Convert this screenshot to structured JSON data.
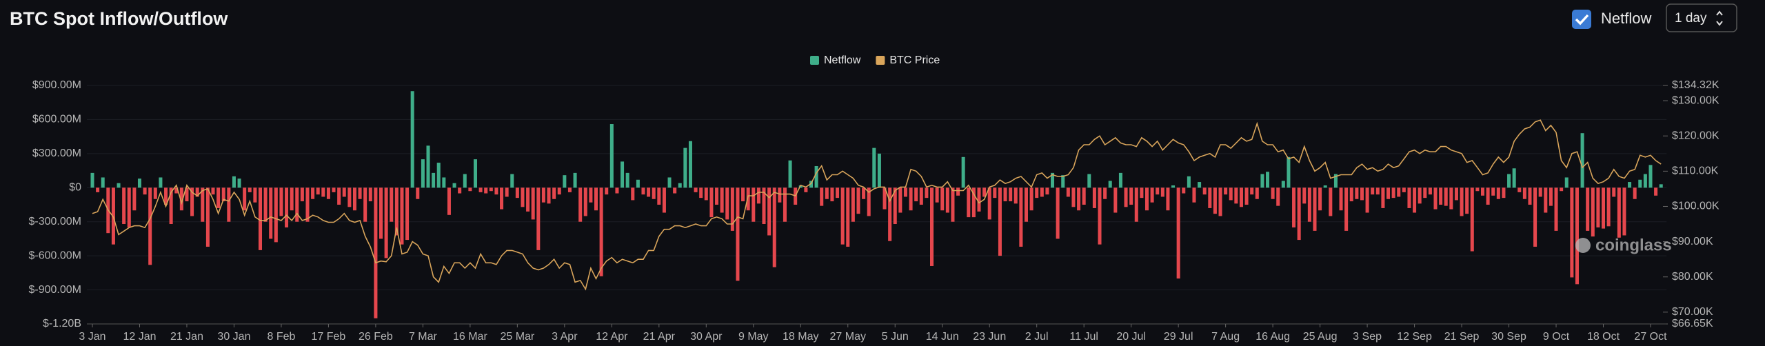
{
  "header": {
    "title": "BTC Spot Inflow/Outflow"
  },
  "controls": {
    "toggle_label": "Netflow",
    "interval": "1 day"
  },
  "watermark": "coinglass",
  "chart_data": {
    "type": "bar",
    "categories": [
      "3 Jan",
      null,
      null,
      null,
      null,
      null,
      null,
      null,
      null,
      "12 Jan",
      null,
      null,
      null,
      null,
      null,
      null,
      null,
      null,
      "21 Jan",
      null,
      null,
      null,
      null,
      null,
      null,
      null,
      null,
      "30 Jan",
      null,
      null,
      null,
      null,
      null,
      null,
      null,
      null,
      "8 Feb",
      null,
      null,
      null,
      null,
      null,
      null,
      null,
      null,
      "17 Feb",
      null,
      null,
      null,
      null,
      null,
      null,
      null,
      null,
      "26 Feb",
      null,
      null,
      null,
      null,
      null,
      null,
      null,
      null,
      "7 Mar",
      null,
      null,
      null,
      null,
      null,
      null,
      null,
      null,
      "16 Mar",
      null,
      null,
      null,
      null,
      null,
      null,
      null,
      null,
      "25 Mar",
      null,
      null,
      null,
      null,
      null,
      null,
      null,
      null,
      "3 Apr",
      null,
      null,
      null,
      null,
      null,
      null,
      null,
      null,
      "12 Apr",
      null,
      null,
      null,
      null,
      null,
      null,
      null,
      null,
      "21 Apr",
      null,
      null,
      null,
      null,
      null,
      null,
      null,
      null,
      "30 Apr",
      null,
      null,
      null,
      null,
      null,
      null,
      null,
      null,
      "9 May",
      null,
      null,
      null,
      null,
      null,
      null,
      null,
      null,
      "18 May",
      null,
      null,
      null,
      null,
      null,
      null,
      null,
      null,
      "27 May",
      null,
      null,
      null,
      null,
      null,
      null,
      null,
      null,
      "5 Jun",
      null,
      null,
      null,
      null,
      null,
      null,
      null,
      null,
      "14 Jun",
      null,
      null,
      null,
      null,
      null,
      null,
      null,
      null,
      "23 Jun",
      null,
      null,
      null,
      null,
      null,
      null,
      null,
      null,
      "2 Jul",
      null,
      null,
      null,
      null,
      null,
      null,
      null,
      null,
      "11 Jul",
      null,
      null,
      null,
      null,
      null,
      null,
      null,
      null,
      "20 Jul",
      null,
      null,
      null,
      null,
      null,
      null,
      null,
      null,
      "29 Jul",
      null,
      null,
      null,
      null,
      null,
      null,
      null,
      null,
      "7 Aug",
      null,
      null,
      null,
      null,
      null,
      null,
      null,
      null,
      "16 Aug",
      null,
      null,
      null,
      null,
      null,
      null,
      null,
      null,
      "25 Aug",
      null,
      null,
      null,
      null,
      null,
      null,
      null,
      null,
      "3 Sep",
      null,
      null,
      null,
      null,
      null,
      null,
      null,
      null,
      "12 Sep",
      null,
      null,
      null,
      null,
      null,
      null,
      null,
      null,
      "21 Sep",
      null,
      null,
      null,
      null,
      null,
      null,
      null,
      null,
      "30 Sep",
      null,
      null,
      null,
      null,
      null,
      null,
      null,
      null,
      "9 Oct",
      null,
      null,
      null,
      null,
      null,
      null,
      null,
      null,
      "18 Oct",
      null,
      null,
      null,
      null,
      null,
      null,
      null,
      null,
      "27 Oct",
      null,
      null
    ],
    "series": [
      {
        "name": "Netflow",
        "type": "bar",
        "color": "#3fae8a",
        "negative_color": "#e5474d",
        "values": [
          130,
          -40,
          90,
          -400,
          -500,
          40,
          -320,
          -350,
          -200,
          80,
          -60,
          -680,
          -100,
          90,
          -150,
          -320,
          -50,
          -200,
          -120,
          -250,
          -80,
          -300,
          -520,
          -60,
          -180,
          -120,
          -300,
          100,
          80,
          -200,
          -40,
          -130,
          -550,
          -300,
          -450,
          -480,
          -250,
          -350,
          -200,
          -300,
          -120,
          -300,
          -100,
          -60,
          -80,
          -100,
          -40,
          -150,
          -80,
          -170,
          -200,
          -100,
          -300,
          -120,
          -1150,
          -450,
          -620,
          -300,
          -420,
          -500,
          -460,
          850,
          -100,
          250,
          370,
          130,
          220,
          90,
          -240,
          40,
          -50,
          120,
          -30,
          250,
          -40,
          -50,
          -30,
          -60,
          -190,
          -80,
          120,
          -90,
          -170,
          -210,
          -280,
          -550,
          -130,
          -140,
          -100,
          -60,
          110,
          -40,
          130,
          -300,
          -250,
          -130,
          -200,
          -780,
          -60,
          560,
          -50,
          230,
          130,
          -110,
          70,
          -60,
          -80,
          -100,
          -150,
          -220,
          90,
          -50,
          40,
          350,
          410,
          -40,
          -90,
          -110,
          -260,
          -150,
          -220,
          -280,
          -380,
          -820,
          -120,
          -200,
          -300,
          -140,
          -320,
          -420,
          -700,
          -130,
          -300,
          240,
          -150,
          20,
          -40,
          60,
          190,
          -160,
          -100,
          -120,
          -90,
          -500,
          -520,
          -300,
          -230,
          -100,
          -250,
          350,
          300,
          -190,
          -470,
          -320,
          -220,
          -80,
          -200,
          -120,
          -150,
          -90,
          -690,
          -130,
          -200,
          -220,
          -300,
          -70,
          270,
          -260,
          -260,
          -210,
          -80,
          -280,
          -90,
          -600,
          -120,
          -120,
          -140,
          -520,
          -300,
          -200,
          -90,
          -80,
          -60,
          130,
          -450,
          110,
          -80,
          -170,
          -200,
          -150,
          120,
          -180,
          -500,
          -100,
          60,
          -220,
          130,
          -170,
          -150,
          -300,
          -90,
          -200,
          -130,
          -60,
          -80,
          -200,
          20,
          -800,
          -50,
          100,
          -130,
          50,
          -60,
          -180,
          -230,
          -250,
          -60,
          -110,
          -140,
          -170,
          -150,
          -60,
          -100,
          120,
          140,
          -100,
          -160,
          60,
          270,
          -350,
          -460,
          -140,
          -300,
          -380,
          -200,
          20,
          -250,
          120,
          -200,
          -380,
          -120,
          -100,
          -110,
          -220,
          -60,
          -60,
          -180,
          -100,
          -90,
          -80,
          -40,
          -180,
          -220,
          -140,
          -90,
          -60,
          -190,
          -150,
          -160,
          -190,
          -110,
          -250,
          -230,
          -560,
          -30,
          -70,
          -150,
          -70,
          -100,
          -90,
          120,
          170,
          -40,
          -100,
          -150,
          -520,
          -80,
          -220,
          -160,
          -380,
          -30,
          90,
          -790,
          -850,
          480,
          -380,
          -430,
          -350,
          -360,
          -340,
          -80,
          -440,
          -420,
          50,
          -100,
          70,
          120,
          200,
          -70,
          30
        ]
      },
      {
        "name": "BTC Price",
        "type": "line",
        "axis": "y2",
        "color": "#d9a55b",
        "values": [
          98,
          98.5,
          102,
          99,
          97,
          92,
          93,
          94,
          94.5,
          94.5,
          94,
          96.5,
          100,
          104,
          100,
          104,
          106,
          101,
          106,
          104,
          103,
          104.5,
          105,
          102,
          98,
          102,
          101.5,
          104,
          102,
          97.5,
          101.5,
          97,
          96,
          96,
          97,
          96.5,
          96,
          97.5,
          96,
          98,
          96,
          96.5,
          97.5,
          97,
          96,
          95.5,
          95.5,
          96.5,
          98,
          96,
          95.5,
          96,
          91.5,
          88.5,
          84,
          84.5,
          84.3,
          86,
          94,
          86.5,
          87,
          90,
          89,
          86.5,
          86,
          80,
          78.5,
          83,
          81,
          84,
          84,
          82.5,
          84,
          82.5,
          86.5,
          84,
          84,
          83.5,
          86,
          87.5,
          87.5,
          87,
          86.5,
          84,
          82.5,
          82,
          82.5,
          83.5,
          85,
          82.5,
          84,
          83.5,
          78.5,
          79,
          76.5,
          82.5,
          79.5,
          82.5,
          84.5,
          85.5,
          84,
          85,
          84.5,
          84,
          85,
          85,
          87.5,
          87.5,
          91.5,
          93.5,
          93.5,
          94.5,
          94.5,
          94,
          94.5,
          95,
          94.5,
          94.5,
          96.5,
          97,
          96.5,
          95,
          95,
          97,
          96.5,
          103,
          103,
          104,
          104,
          102.5,
          104,
          103.5,
          103.5,
          103.5,
          103,
          106,
          105.5,
          106.5,
          109.5,
          111.5,
          107.5,
          109,
          109,
          110,
          109,
          108,
          106,
          105.5,
          104,
          105,
          105.5,
          105.5,
          101.5,
          104.5,
          105.5,
          105.5,
          110.5,
          110,
          108.5,
          105.5,
          106,
          105.5,
          105.5,
          107,
          104.5,
          104.5,
          104.5,
          106,
          103.5,
          101,
          102,
          105.5,
          106,
          107.5,
          106.5,
          107,
          108,
          108.5,
          107,
          105.5,
          109,
          109.5,
          108,
          109,
          108.5,
          108.5,
          109,
          111,
          116,
          117.5,
          117.5,
          119,
          120,
          117.5,
          118.5,
          119.5,
          118,
          117.5,
          117.5,
          117,
          119.5,
          118.5,
          117,
          118.5,
          116,
          117.5,
          119,
          118,
          117.5,
          115.5,
          113,
          114,
          114.5,
          115,
          114,
          117.5,
          117.5,
          116.5,
          118,
          119.5,
          118.5,
          119,
          123.5,
          118.5,
          117.5,
          117.5,
          115.5,
          116,
          113.5,
          114,
          112.5,
          117,
          113,
          110,
          111,
          112.5,
          108,
          108.5,
          109,
          109,
          109,
          111,
          112,
          110.5,
          111,
          110,
          110.5,
          112,
          111,
          111.5,
          113.5,
          115.5,
          116,
          115,
          116,
          115.5,
          115.5,
          117,
          117,
          116,
          115.5,
          115,
          112.5,
          113,
          111,
          109,
          109.5,
          112,
          114,
          112.5,
          114,
          118.5,
          120.5,
          122,
          122.5,
          124,
          124.5,
          121.5,
          123,
          121,
          113,
          111,
          115,
          115.5,
          111,
          112.5,
          108,
          106.5,
          107,
          108,
          110.5,
          108.5,
          108,
          110,
          110.5,
          114.5,
          114,
          114.5,
          113,
          112
        ]
      }
    ],
    "ylim": [
      -1200,
      900
    ],
    "yticks": [
      {
        "value": 900,
        "label": "$900.00M"
      },
      {
        "value": 600,
        "label": "$600.00M"
      },
      {
        "value": 300,
        "label": "$300.00M"
      },
      {
        "value": 0,
        "label": "$0"
      },
      {
        "value": -300,
        "label": "$-300.00M"
      },
      {
        "value": -600,
        "label": "$-600.00M"
      },
      {
        "value": -900,
        "label": "$-900.00M"
      },
      {
        "value": -1200,
        "label": "$-1.20B"
      }
    ],
    "y2lim": [
      66.65,
      134.32
    ],
    "y2ticks": [
      {
        "value": 134.32,
        "label": "$134.32K"
      },
      {
        "value": 130,
        "label": "$130.00K"
      },
      {
        "value": 120,
        "label": "$120.00K"
      },
      {
        "value": 110,
        "label": "$110.00K"
      },
      {
        "value": 100,
        "label": "$100.00K"
      },
      {
        "value": 90,
        "label": "$90.00K"
      },
      {
        "value": 80,
        "label": "$80.00K"
      },
      {
        "value": 70,
        "label": "$70.00K"
      },
      {
        "value": 66.65,
        "label": "$66.65K"
      }
    ],
    "grid": true,
    "legend": "top"
  }
}
